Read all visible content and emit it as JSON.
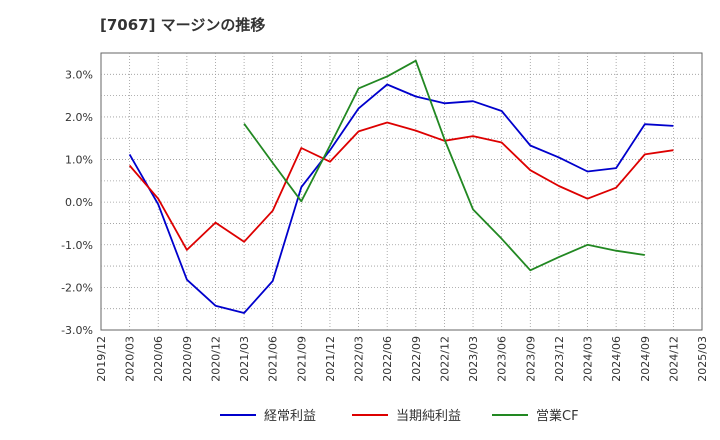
{
  "chart_data": {
    "type": "line",
    "title": "[7067]  マージンの推移",
    "xlabel": "",
    "ylabel": "",
    "x": [
      "2019/12",
      "2020/03",
      "2020/06",
      "2020/09",
      "2020/12",
      "2021/03",
      "2021/06",
      "2021/09",
      "2021/12",
      "2022/03",
      "2022/06",
      "2022/09",
      "2022/12",
      "2023/03",
      "2023/06",
      "2023/09",
      "2023/12",
      "2024/03",
      "2024/06",
      "2024/09",
      "2024/12",
      "2025/03"
    ],
    "ylim": [
      -3.0,
      3.5
    ],
    "yticks": [
      -3.0,
      -2.0,
      -1.0,
      0.0,
      1.0,
      2.0,
      3.0
    ],
    "ytick_labels": [
      "-3.0%",
      "-2.0%",
      "-1.0%",
      "0.0%",
      "1.0%",
      "2.0%",
      "3.0%"
    ],
    "grid": true,
    "legend_position": "bottom",
    "series": [
      {
        "name": "経常利益",
        "color": "#0000cc",
        "values": [
          null,
          1.12,
          -0.05,
          -1.82,
          -2.43,
          -2.6,
          -1.85,
          0.35,
          1.22,
          2.2,
          2.76,
          2.48,
          2.32,
          2.37,
          2.14,
          1.33,
          1.05,
          0.72,
          0.8,
          1.83,
          1.79,
          null
        ]
      },
      {
        "name": "当期純利益",
        "color": "#dd0000",
        "values": [
          null,
          0.86,
          0.08,
          -1.12,
          -0.48,
          -0.93,
          -0.2,
          1.27,
          0.95,
          1.66,
          1.87,
          1.68,
          1.44,
          1.55,
          1.4,
          0.75,
          0.38,
          0.08,
          0.34,
          1.12,
          1.22,
          null
        ]
      },
      {
        "name": "営業CF",
        "color": "#228822",
        "values": [
          null,
          null,
          null,
          null,
          null,
          1.84,
          0.92,
          0.02,
          1.33,
          2.67,
          2.95,
          3.32,
          1.48,
          -0.17,
          -0.86,
          -1.6,
          -1.29,
          -1.0,
          -1.14,
          -1.24,
          null,
          null
        ]
      }
    ]
  }
}
